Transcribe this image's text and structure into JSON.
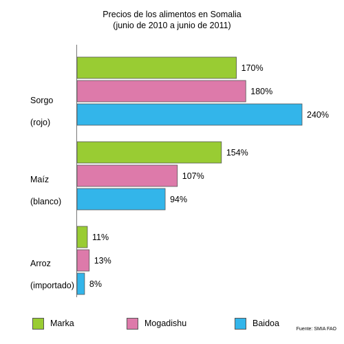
{
  "chart_data": {
    "type": "bar",
    "orientation": "horizontal",
    "title": "Precios de los alimentos en Somalia",
    "subtitle": "(junio de 2010 a junio de 2011)",
    "categories": [
      {
        "label_line1": "Sorgo",
        "label_line2": "(rojo)"
      },
      {
        "label_line1": "Maíz",
        "label_line2": "(blanco)"
      },
      {
        "label_line1": "Arroz",
        "label_line2": "(importado)"
      }
    ],
    "series": [
      {
        "name": "Marka",
        "color": "#99cc33",
        "values": [
          170,
          154,
          11
        ],
        "labels": [
          "170%",
          "154%",
          "11%"
        ]
      },
      {
        "name": "Mogadishu",
        "color": "#dd7aaa",
        "values": [
          180,
          107,
          13
        ],
        "labels": [
          "180%",
          "107%",
          "13%"
        ]
      },
      {
        "name": "Baidoa",
        "color": "#33b5ea",
        "values": [
          240,
          94,
          8
        ],
        "labels": [
          "240%",
          "94%",
          "8%"
        ]
      }
    ],
    "unit": "%",
    "xlim": [
      0,
      240
    ],
    "legend_position": "bottom",
    "grid": false
  },
  "source": "Fuente: SMIA FAO"
}
